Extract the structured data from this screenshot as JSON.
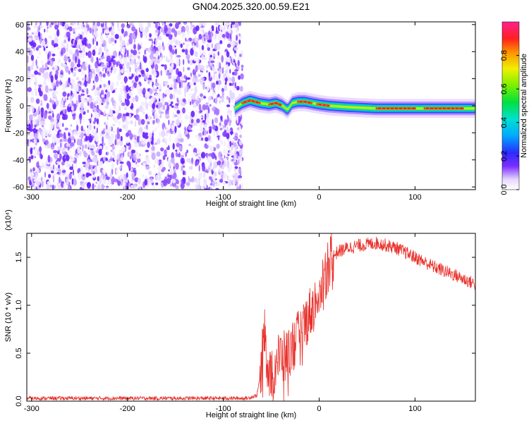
{
  "title": "GN04.2025.320.00.59.E21",
  "chart_data": [
    {
      "type": "heatmap",
      "name": "spectrogram",
      "xlabel": "Height of straight line (km)",
      "ylabel": "Frequency (Hz)",
      "xlim": [
        -305,
        163
      ],
      "ylim": [
        -62,
        62
      ],
      "xticks": [
        -300,
        -200,
        -100,
        0,
        100
      ],
      "yticks": [
        60,
        40,
        20,
        0,
        -20,
        -40,
        -60
      ],
      "colorbar": {
        "label": "Normalized spectral amplitude",
        "range": [
          0,
          1
        ],
        "ticks": [
          "0.0",
          "0.2",
          "0.4",
          "0.6",
          "0.8"
        ],
        "tick_values": [
          0,
          0.2,
          0.4,
          0.6,
          0.8
        ]
      },
      "noise_region_x": [
        -305,
        -80
      ],
      "ridge": {
        "x": [
          -88,
          -80,
          -72,
          -62,
          -52,
          -45,
          -38,
          -33,
          -28,
          -22,
          -15,
          -8,
          0,
          10,
          30,
          60,
          90,
          120,
          163
        ],
        "y": [
          -2,
          2,
          4,
          2,
          1,
          2,
          0,
          -3,
          2,
          3,
          3,
          2,
          1,
          0,
          -1,
          -2,
          -2,
          -2,
          -2
        ]
      }
    },
    {
      "type": "line",
      "name": "snr",
      "xlabel": "Height of straight line (km)",
      "ylabel": "SNR (10 * v/v)",
      "y_multiplier": "(x10⁴)",
      "xlim": [
        -305,
        163
      ],
      "ylim": [
        0,
        1.75
      ],
      "xticks": [
        -300,
        -200,
        -100,
        0,
        100
      ],
      "yticks": [
        0.0,
        0.5,
        1.0,
        1.5
      ],
      "ytick_labels": [
        "0.0",
        "0.5",
        "1.0",
        "1.5"
      ],
      "color": "#e8302a",
      "envelope": {
        "x": [
          -305,
          -150,
          -75,
          -65,
          -60,
          -57,
          -55,
          -52,
          -48,
          -45,
          -40,
          -35,
          -30,
          -25,
          -20,
          -15,
          -10,
          -5,
          0,
          5,
          10,
          15,
          20,
          30,
          40,
          60,
          80,
          100,
          120,
          140,
          163
        ],
        "y": [
          0.03,
          0.03,
          0.03,
          0.06,
          0.35,
          0.9,
          0.45,
          0.3,
          0.28,
          0.4,
          0.48,
          0.45,
          0.55,
          0.62,
          0.7,
          0.8,
          0.92,
          1.0,
          1.15,
          1.3,
          1.45,
          1.52,
          1.56,
          1.6,
          1.62,
          1.65,
          1.6,
          1.5,
          1.4,
          1.32,
          1.22
        ]
      }
    }
  ]
}
